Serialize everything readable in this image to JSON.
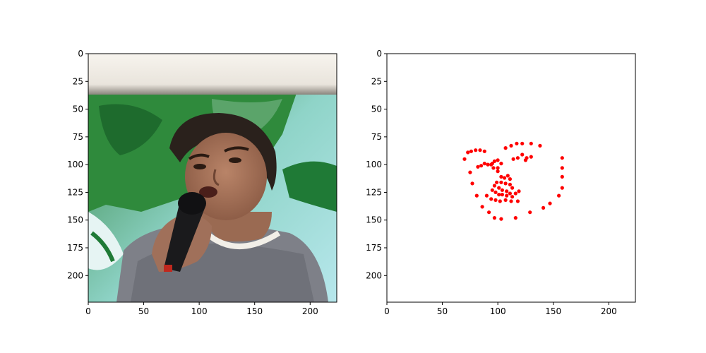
{
  "chart_data": [
    {
      "type": "image",
      "xlim": [
        0,
        224
      ],
      "ylim": [
        224,
        0
      ],
      "xticks": [
        0,
        50,
        100,
        150,
        200
      ],
      "yticks": [
        0,
        25,
        50,
        75,
        100,
        125,
        150,
        175,
        200
      ],
      "image": "photo of a woman speaking into a black microphone in front of a green and light-blue painted backdrop with a light banner strip at the top"
    },
    {
      "type": "scatter",
      "xlim": [
        0,
        224
      ],
      "ylim": [
        224,
        0
      ],
      "xticks": [
        0,
        50,
        100,
        150,
        200
      ],
      "yticks": [
        0,
        25,
        50,
        75,
        100,
        125,
        150,
        175,
        200
      ],
      "marker_color": "#ff0000",
      "points": [
        [
          73,
          89
        ],
        [
          76,
          88
        ],
        [
          80,
          87
        ],
        [
          84,
          87
        ],
        [
          88,
          88
        ],
        [
          107,
          85
        ],
        [
          112,
          83
        ],
        [
          117,
          81
        ],
        [
          122,
          81
        ],
        [
          130,
          81
        ],
        [
          138,
          83
        ],
        [
          94,
          100
        ],
        [
          97,
          97
        ],
        [
          100,
          96
        ],
        [
          103,
          99
        ],
        [
          100,
          103
        ],
        [
          96,
          103
        ],
        [
          114,
          95
        ],
        [
          118,
          94
        ],
        [
          122,
          91
        ],
        [
          126,
          94
        ],
        [
          130,
          93
        ],
        [
          125,
          96
        ],
        [
          82,
          102
        ],
        [
          85,
          101
        ],
        [
          88,
          99
        ],
        [
          91,
          100
        ],
        [
          95,
          99
        ],
        [
          100,
          106
        ],
        [
          103,
          111
        ],
        [
          106,
          112
        ],
        [
          109,
          110
        ],
        [
          111,
          113
        ],
        [
          99,
          116
        ],
        [
          103,
          116
        ],
        [
          107,
          117
        ],
        [
          111,
          118
        ],
        [
          113,
          121
        ],
        [
          97,
          119
        ],
        [
          101,
          121
        ],
        [
          104,
          123
        ],
        [
          108,
          124
        ],
        [
          111,
          126
        ],
        [
          95,
          123
        ],
        [
          98,
          125
        ],
        [
          101,
          127
        ],
        [
          104,
          127
        ],
        [
          108,
          128
        ],
        [
          113,
          129
        ],
        [
          116,
          126
        ],
        [
          119,
          124
        ],
        [
          90,
          128
        ],
        [
          94,
          131
        ],
        [
          98,
          132
        ],
        [
          102,
          133
        ],
        [
          107,
          132
        ],
        [
          112,
          133
        ],
        [
          118,
          133
        ],
        [
          70,
          95
        ],
        [
          75,
          107
        ],
        [
          77,
          117
        ],
        [
          81,
          128
        ],
        [
          86,
          138
        ],
        [
          92,
          143
        ],
        [
          97,
          148
        ],
        [
          103,
          149
        ],
        [
          116,
          148
        ],
        [
          129,
          143
        ],
        [
          141,
          139
        ],
        [
          147,
          135
        ],
        [
          155,
          128
        ],
        [
          158,
          121
        ],
        [
          158,
          111
        ],
        [
          158,
          103
        ],
        [
          158,
          94
        ]
      ]
    }
  ]
}
